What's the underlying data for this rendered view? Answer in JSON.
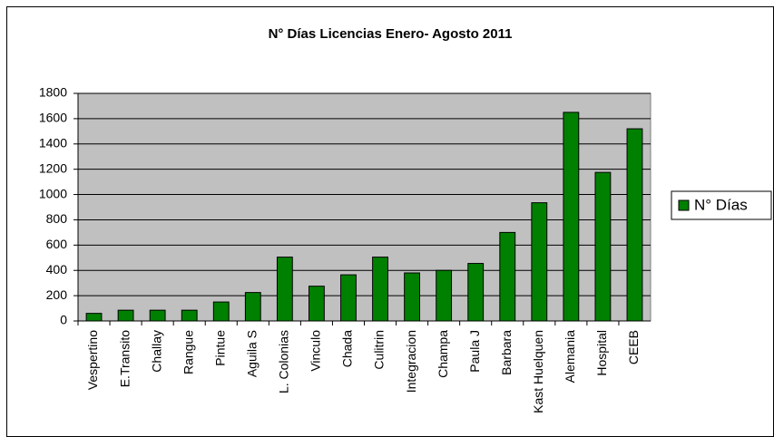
{
  "chart_data": {
    "type": "bar",
    "title": "N° Días Licencias Enero- Agosto 2011",
    "categories": [
      "Vespertino",
      "E.Transito",
      "Challay",
      "Rangue",
      "Pintue",
      "Aguila S",
      "L. Colonias",
      "Vinculo",
      "Chada",
      "Culitrin",
      "Integracion",
      "Champa",
      "Paula J",
      "Barbara",
      "Kast Huelquen",
      "Alemania",
      "Hospital",
      "CEEB"
    ],
    "series": [
      {
        "name": "N° Días",
        "color": "#008000",
        "values": [
          60,
          85,
          85,
          85,
          150,
          225,
          505,
          275,
          365,
          505,
          380,
          400,
          455,
          700,
          935,
          1650,
          1175,
          1520
        ]
      }
    ],
    "ylim": [
      0,
      1800
    ],
    "yticks": [
      0,
      200,
      400,
      600,
      800,
      1000,
      1200,
      1400,
      1600,
      1800
    ],
    "grid": true,
    "legend": "right"
  }
}
